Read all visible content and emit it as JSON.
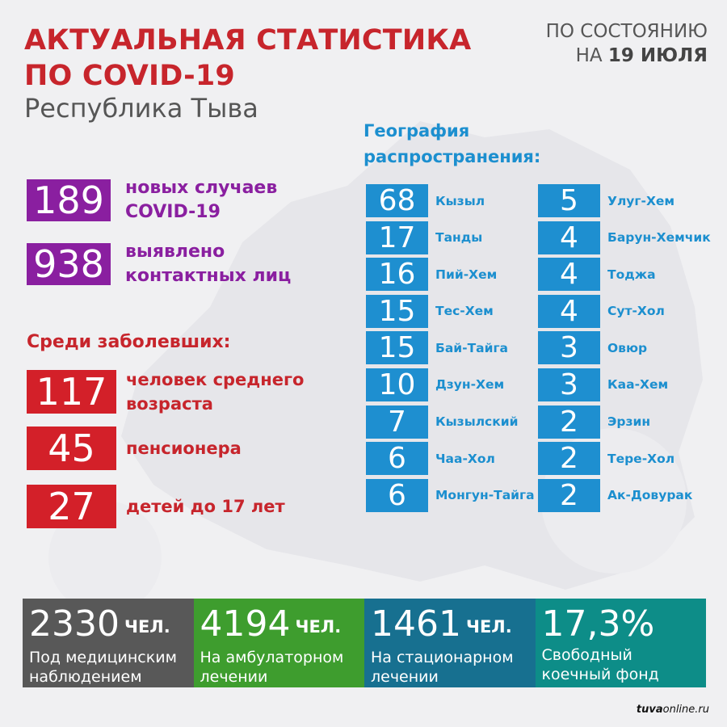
{
  "header": {
    "title_line1": "АКТУАЛЬНАЯ СТАТИСТИКА",
    "title_line2": "ПО COVID-19",
    "subtitle": "Республика Тыва"
  },
  "date": {
    "line1": "ПО СОСТОЯНИЮ",
    "line2_prefix": "НА ",
    "line2_bold": "19 ИЮЛЯ"
  },
  "new_cases": {
    "value": "189",
    "label_line1": "новых случаев",
    "label_line2": "COVID-19"
  },
  "contacts": {
    "value": "938",
    "label_line1": "выявлено",
    "label_line2": "контактных лиц"
  },
  "among_sick": {
    "title": "Среди заболевших:",
    "items": [
      {
        "value": "117",
        "label_line1": "человек среднего",
        "label_line2": "возраста"
      },
      {
        "value": "45",
        "label_line1": "пенсионера",
        "label_line2": ""
      },
      {
        "value": "27",
        "label_line1": "детей до 17 лет",
        "label_line2": ""
      }
    ]
  },
  "geography": {
    "title_line1": "География",
    "title_line2": "распространения:",
    "left": [
      {
        "value": "68",
        "name": "Кызыл"
      },
      {
        "value": "17",
        "name": "Танды"
      },
      {
        "value": "16",
        "name": "Пий-Хем"
      },
      {
        "value": "15",
        "name": "Тес-Хем"
      },
      {
        "value": "15",
        "name": "Бай-Тайга"
      },
      {
        "value": "10",
        "name": "Дзун-Хем"
      },
      {
        "value": "7",
        "name": "Кызылский"
      },
      {
        "value": "6",
        "name": "Чаа-Хол"
      },
      {
        "value": "6",
        "name": "Монгун-Тайга"
      }
    ],
    "right": [
      {
        "value": "5",
        "name": "Улуг-Хем"
      },
      {
        "value": "4",
        "name": "Барун-Хемчик"
      },
      {
        "value": "4",
        "name": "Тоджа"
      },
      {
        "value": "4",
        "name": "Сут-Хол"
      },
      {
        "value": "3",
        "name": "Овюр"
      },
      {
        "value": "3",
        "name": "Каа-Хем"
      },
      {
        "value": "2",
        "name": "Эрзин"
      },
      {
        "value": "2",
        "name": "Тере-Хол"
      },
      {
        "value": "2",
        "name": "Ак-Довурак"
      }
    ]
  },
  "bottom": [
    {
      "value": "2330",
      "unit": "ЧЕЛ.",
      "label_line1": "Под медицинским",
      "label_line2": "наблюдением",
      "color": "#585858"
    },
    {
      "value": "4194",
      "unit": "ЧЕЛ.",
      "label_line1": "На амбулаторном",
      "label_line2": "лечении",
      "color": "#3e9d2e"
    },
    {
      "value": "1461",
      "unit": "ЧЕЛ.",
      "label_line1": "На стационарном",
      "label_line2": "лечении",
      "color": "#177090"
    },
    {
      "value": "17,3%",
      "unit": "",
      "label_line1": "Свободный",
      "label_line2": "коечный фонд",
      "color": "#0d8d88"
    }
  ],
  "credit": {
    "bold": "tuva",
    "rest": "online.ru"
  },
  "colors": {
    "red": "#c7252c",
    "purple": "#8a1fa0",
    "blue": "#1e8fd0"
  }
}
